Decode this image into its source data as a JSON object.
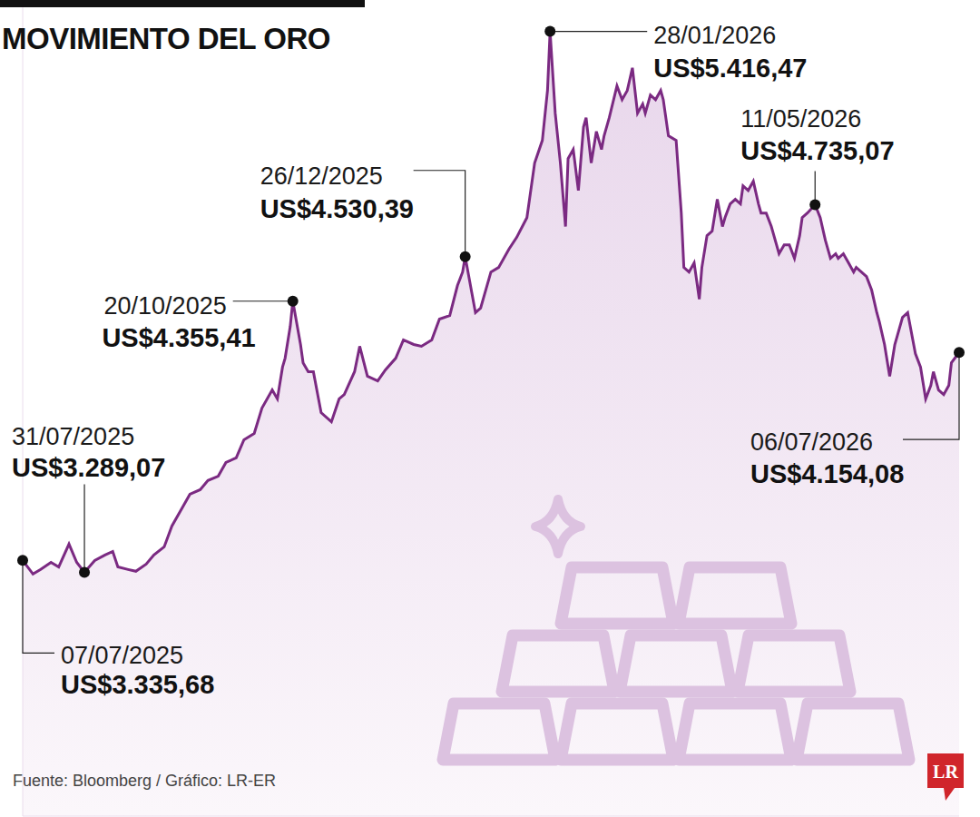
{
  "chart_data": {
    "type": "area",
    "title": "MOVIMIENTO DEL ORO",
    "source": "Fuente: Bloomberg / Gráfico: LR-ER",
    "logo": "LR",
    "color": "#7b2a82",
    "grid": false,
    "tick_labels": false,
    "xlim": [
      "2025-07-07",
      "2026-07-06"
    ],
    "ylim": [
      2330,
      5540
    ],
    "x": [
      "2025-07-07",
      "2025-07-11",
      "2025-07-14",
      "2025-07-18",
      "2025-07-21",
      "2025-07-25",
      "2025-07-28",
      "2025-07-31",
      "2025-08-04",
      "2025-08-08",
      "2025-08-11",
      "2025-08-13",
      "2025-08-17",
      "2025-08-20",
      "2025-08-24",
      "2025-08-27",
      "2025-08-31",
      "2025-09-03",
      "2025-09-07",
      "2025-09-10",
      "2025-09-14",
      "2025-09-17",
      "2025-09-21",
      "2025-09-24",
      "2025-09-28",
      "2025-10-01",
      "2025-10-05",
      "2025-10-08",
      "2025-10-12",
      "2025-10-14",
      "2025-10-16",
      "2025-10-17",
      "2025-10-19",
      "2025-10-20",
      "2025-10-23",
      "2025-10-24",
      "2025-10-26",
      "2025-10-28",
      "2025-10-30",
      "2025-10-31",
      "2025-11-04",
      "2025-11-07",
      "2025-11-09",
      "2025-11-13",
      "2025-11-15",
      "2025-11-18",
      "2025-11-22",
      "2025-11-25",
      "2025-11-29",
      "2025-12-02",
      "2025-12-06",
      "2025-12-09",
      "2025-12-13",
      "2025-12-16",
      "2025-12-20",
      "2025-12-23",
      "2025-12-25",
      "2025-12-26",
      "2025-12-30",
      "2026-01-01",
      "2026-01-05",
      "2026-01-08",
      "2026-01-12",
      "2026-01-15",
      "2026-01-19",
      "2026-01-22",
      "2026-01-25",
      "2026-01-27",
      "2026-01-28",
      "2026-01-30",
      "2026-02-01",
      "2026-02-03",
      "2026-02-04",
      "2026-02-06",
      "2026-02-08",
      "2026-02-10",
      "2026-02-11",
      "2026-02-13",
      "2026-02-15",
      "2026-02-17",
      "2026-02-18",
      "2026-02-20",
      "2026-02-23",
      "2026-02-25",
      "2026-02-27",
      "2026-03-01",
      "2026-03-03",
      "2026-03-05",
      "2026-03-06",
      "2026-03-08",
      "2026-03-10",
      "2026-03-12",
      "2026-03-13",
      "2026-03-15",
      "2026-03-18",
      "2026-03-20",
      "2026-03-21",
      "2026-03-23",
      "2026-03-25",
      "2026-03-27",
      "2026-03-28",
      "2026-03-30",
      "2026-04-01",
      "2026-04-03",
      "2026-04-05",
      "2026-04-06",
      "2026-04-08",
      "2026-04-10",
      "2026-04-12",
      "2026-04-13",
      "2026-04-15",
      "2026-04-17",
      "2026-04-19",
      "2026-04-20",
      "2026-04-22",
      "2026-04-24",
      "2026-04-27",
      "2026-04-29",
      "2026-05-01",
      "2026-05-03",
      "2026-05-05",
      "2026-05-06",
      "2026-05-08",
      "2026-05-11",
      "2026-05-13",
      "2026-05-15",
      "2026-05-17",
      "2026-05-19",
      "2026-05-20",
      "2026-05-22",
      "2026-05-24",
      "2026-05-26",
      "2026-05-27",
      "2026-05-29",
      "2026-05-31",
      "2026-06-02",
      "2026-06-04",
      "2026-06-05",
      "2026-06-07",
      "2026-06-09",
      "2026-06-11",
      "2026-06-12",
      "2026-06-14",
      "2026-06-16",
      "2026-06-18",
      "2026-06-19",
      "2026-06-21",
      "2026-06-23",
      "2026-06-25",
      "2026-06-26",
      "2026-06-28",
      "2026-06-30",
      "2026-07-02",
      "2026-07-03",
      "2026-07-06"
    ],
    "values": [
      3335.68,
      3282,
      3300,
      3328,
      3310,
      3400,
      3328,
      3289.07,
      3335,
      3357,
      3371,
      3310,
      3300,
      3293,
      3321,
      3357,
      3389,
      3471,
      3542,
      3596,
      3614,
      3650,
      3667,
      3721,
      3739,
      3810,
      3835,
      3935,
      4006,
      3971,
      4096,
      4131,
      4256,
      4355.41,
      4185,
      4113,
      4078,
      4078,
      3971,
      3917,
      3881,
      3971,
      3988,
      4078,
      4178,
      4060,
      4042,
      4085,
      4131,
      4203,
      4185,
      4178,
      4203,
      4285,
      4299,
      4417,
      4470,
      4530.39,
      4310,
      4328,
      4470,
      4488,
      4560,
      4606,
      4684,
      4899,
      4988,
      5184,
      5416.47,
      5095,
      4899,
      4649,
      4916,
      4952,
      4791,
      5041,
      5077,
      4899,
      5023,
      4952,
      5006,
      5077,
      5202,
      5148,
      5184,
      5273,
      5095,
      5131,
      5095,
      5166,
      5148,
      5184,
      5148,
      5006,
      4988,
      4702,
      4488,
      4470,
      4506,
      4363,
      4488,
      4613,
      4631,
      4756,
      4649,
      4684,
      4738,
      4756,
      4738,
      4809,
      4791,
      4827,
      4738,
      4702,
      4702,
      4649,
      4542,
      4577,
      4577,
      4524,
      4613,
      4684,
      4702,
      4735.07,
      4684,
      4595,
      4524,
      4542,
      4524,
      4542,
      4506,
      4470,
      4488,
      4470,
      4452,
      4399,
      4310,
      4274,
      4185,
      4060,
      4185,
      4220,
      4292,
      4310,
      4203,
      4149,
      4096,
      3971,
      4024,
      4078,
      4006,
      3988,
      4024,
      4113,
      4154.08
    ],
    "annotations": [
      {
        "x": "2025-07-07",
        "value": 3335.68,
        "date_label": "07/07/2025",
        "label": "US$3.335,68"
      },
      {
        "x": "2025-07-31",
        "value": 3289.07,
        "date_label": "31/07/2025",
        "label": "US$3.289,07"
      },
      {
        "x": "2025-10-20",
        "value": 4355.41,
        "date_label": "20/10/2025",
        "label": "US$4.355,41"
      },
      {
        "x": "2025-12-26",
        "value": 4530.39,
        "date_label": "26/12/2025",
        "label": "US$4.530,39"
      },
      {
        "x": "2026-01-28",
        "value": 5416.47,
        "date_label": "28/01/2026",
        "label": "US$5.416,47"
      },
      {
        "x": "2026-05-11",
        "value": 4735.07,
        "date_label": "11/05/2026",
        "label": "US$4.735,07"
      },
      {
        "x": "2026-07-06",
        "value": 4154.08,
        "date_label": "06/07/2026",
        "label": "US$4.154,08"
      }
    ]
  }
}
